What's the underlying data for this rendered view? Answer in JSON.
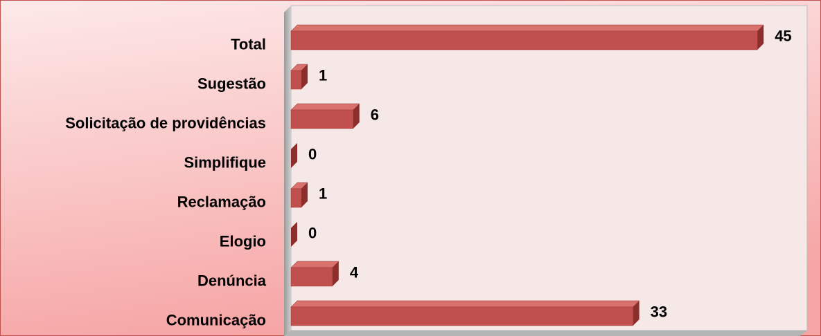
{
  "chart_data": {
    "type": "bar",
    "orientation": "horizontal",
    "categories": [
      "Total",
      "Sugestão",
      "Solicitação de providências",
      "Simplifique",
      "Reclamação",
      "Elogio",
      "Denúncia",
      "Comunicação"
    ],
    "values": [
      45,
      1,
      6,
      0,
      1,
      0,
      4,
      33
    ],
    "color": "#c0504d",
    "xlim": [
      0,
      50
    ]
  }
}
